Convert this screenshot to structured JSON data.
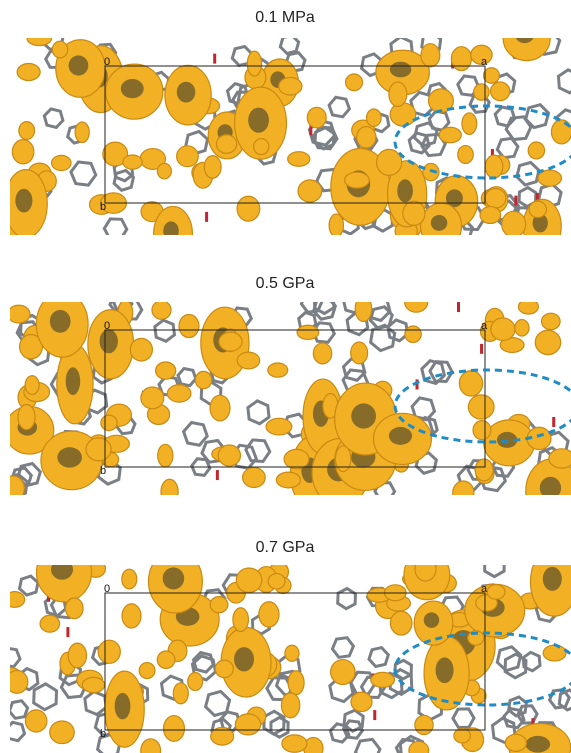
{
  "panels": [
    {
      "title": "0.1 MPa",
      "origin_label": "0",
      "a_label": "a",
      "b_label": "b"
    },
    {
      "title": "0.5 GPa",
      "origin_label": "0",
      "a_label": "a",
      "b_label": "b"
    },
    {
      "title": "0.7 GPa",
      "origin_label": "0",
      "a_label": "a",
      "b_label": "b"
    }
  ]
}
